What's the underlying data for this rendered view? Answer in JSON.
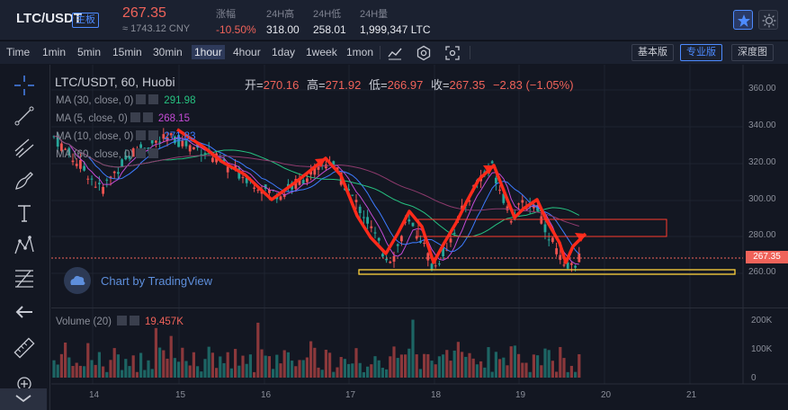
{
  "header": {
    "pair": "LTC/USDT",
    "badge": "主板",
    "price": "267.35",
    "price_cny": "≈ 1743.12 CNY",
    "stats": [
      {
        "label": "涨幅",
        "value": "-10.50%",
        "red": true
      },
      {
        "label": "24H高",
        "value": "318.00",
        "red": false
      },
      {
        "label": "24H低",
        "value": "258.01",
        "red": false
      },
      {
        "label": "24H量",
        "value": "1,999,347 LTC",
        "red": false
      }
    ]
  },
  "toolbar": {
    "timeframes": [
      "Time",
      "1min",
      "5min",
      "15min",
      "30min",
      "1hour",
      "4hour",
      "1day",
      "1week",
      "1mon"
    ],
    "active_timeframe": "1hour",
    "views": [
      "基本版",
      "专业版",
      "深度图"
    ],
    "active_view": "专业版"
  },
  "legend": {
    "title": "LTC/USDT, 60, Huobi",
    "open_label": "开=",
    "open": "270.16",
    "high_label": "高=",
    "high": "271.92",
    "low_label": "低=",
    "low": "266.97",
    "close_label": "收=",
    "close": "267.35",
    "change": "−2.83 (−1.05%)",
    "ma": [
      {
        "label": "MA (30, close, 0)",
        "value": "291.98",
        "color": "#26c281"
      },
      {
        "label": "MA (5, close, 0)",
        "value": "268.15",
        "color": "#c44bd6"
      },
      {
        "label": "MA (10, close, 0)",
        "value": "271.83",
        "color": "#3d7bff"
      },
      {
        "label": "MA (60, close, 0)",
        "value": "",
        "color": "#8a8e99"
      }
    ],
    "volume_label": "Volume (20)",
    "volume_value": "19.457K"
  },
  "watermark": "Chart by TradingView",
  "price_axis": [
    "360.00",
    "340.00",
    "320.00",
    "300.00",
    "280.00",
    "260.00"
  ],
  "current_price_tag": "267.35",
  "volume_axis": [
    "200K",
    "100K",
    "0"
  ],
  "time_axis": [
    "14",
    "15",
    "16",
    "17",
    "18",
    "19",
    "20",
    "21"
  ],
  "colors": {
    "up": "#26a69a",
    "down": "#ef5350",
    "accent": "#4d8bff",
    "annotation": "#ff2a1a"
  }
}
